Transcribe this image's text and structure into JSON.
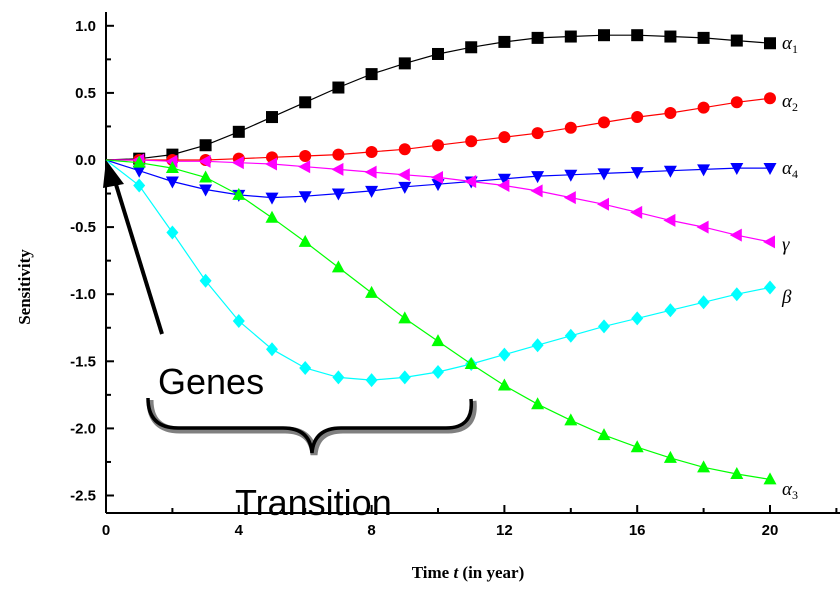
{
  "chart_data": {
    "type": "line",
    "title": "",
    "xlabel": {
      "main": "Time ",
      "var": "t",
      "rest": " (in year)"
    },
    "ylabel": "Sensitivity",
    "xlim": [
      0,
      22
    ],
    "ylim": [
      -2.6,
      1.1
    ],
    "xticks": [
      0,
      4,
      8,
      12,
      16,
      20
    ],
    "xtick_labels": [
      "0",
      "4",
      "8",
      "12",
      "16",
      "20"
    ],
    "yticks": [
      1.0,
      0.5,
      0.0,
      -0.5,
      -1.0,
      -1.5,
      -2.0,
      -2.5
    ],
    "ytick_labels": [
      "1.0",
      "0.5",
      "0.0",
      "-0.5",
      "-1.0",
      "-1.5",
      "-2.0",
      "-2.5"
    ],
    "grid": false,
    "x": [
      0,
      1,
      2,
      3,
      4,
      5,
      6,
      7,
      8,
      9,
      10,
      11,
      12,
      13,
      14,
      15,
      16,
      17,
      18,
      19,
      20
    ],
    "series": [
      {
        "name": "α1",
        "label_main": "α",
        "label_sub": "1",
        "color": "#000000",
        "marker": "square",
        "values": [
          0,
          0.01,
          0.04,
          0.11,
          0.21,
          0.32,
          0.43,
          0.54,
          0.64,
          0.72,
          0.79,
          0.84,
          0.88,
          0.91,
          0.92,
          0.93,
          0.93,
          0.92,
          0.91,
          0.89,
          0.87
        ]
      },
      {
        "name": "α2",
        "label_main": "α",
        "label_sub": "2",
        "color": "#ff0000",
        "marker": "circle",
        "values": [
          0,
          0.0,
          0.0,
          0.0,
          0.01,
          0.02,
          0.03,
          0.04,
          0.06,
          0.08,
          0.11,
          0.14,
          0.17,
          0.2,
          0.24,
          0.28,
          0.32,
          0.35,
          0.39,
          0.43,
          0.46
        ]
      },
      {
        "name": "α4",
        "label_main": "α",
        "label_sub": "4",
        "color": "#0000ff",
        "marker": "triangle-down",
        "values": [
          0,
          -0.08,
          -0.16,
          -0.22,
          -0.26,
          -0.28,
          -0.27,
          -0.25,
          -0.23,
          -0.2,
          -0.18,
          -0.16,
          -0.14,
          -0.12,
          -0.11,
          -0.1,
          -0.09,
          -0.08,
          -0.07,
          -0.06,
          -0.06
        ]
      },
      {
        "name": "γ",
        "label_main": "γ",
        "label_sub": "",
        "color": "#ff00ff",
        "marker": "triangle-left",
        "values": [
          0,
          0.0,
          -0.01,
          -0.01,
          -0.02,
          -0.03,
          -0.05,
          -0.07,
          -0.09,
          -0.11,
          -0.13,
          -0.16,
          -0.19,
          -0.23,
          -0.28,
          -0.33,
          -0.39,
          -0.45,
          -0.5,
          -0.56,
          -0.61
        ]
      },
      {
        "name": "β",
        "label_main": "β",
        "label_sub": "",
        "color": "#00ffff",
        "marker": "diamond",
        "values": [
          0,
          -0.19,
          -0.54,
          -0.9,
          -1.2,
          -1.41,
          -1.55,
          -1.62,
          -1.64,
          -1.62,
          -1.58,
          -1.52,
          -1.45,
          -1.38,
          -1.31,
          -1.24,
          -1.18,
          -1.12,
          -1.06,
          -1.0,
          -0.95
        ]
      },
      {
        "name": "α3",
        "label_main": "α",
        "label_sub": "3",
        "color": "#00ff00",
        "marker": "triangle-up",
        "values": [
          0,
          -0.02,
          -0.06,
          -0.13,
          -0.26,
          -0.43,
          -0.61,
          -0.8,
          -0.99,
          -1.18,
          -1.35,
          -1.52,
          -1.68,
          -1.82,
          -1.94,
          -2.05,
          -2.14,
          -2.22,
          -2.29,
          -2.34,
          -2.38
        ]
      }
    ],
    "annotations": {
      "genes": "Genes",
      "transition": "Transition"
    }
  }
}
